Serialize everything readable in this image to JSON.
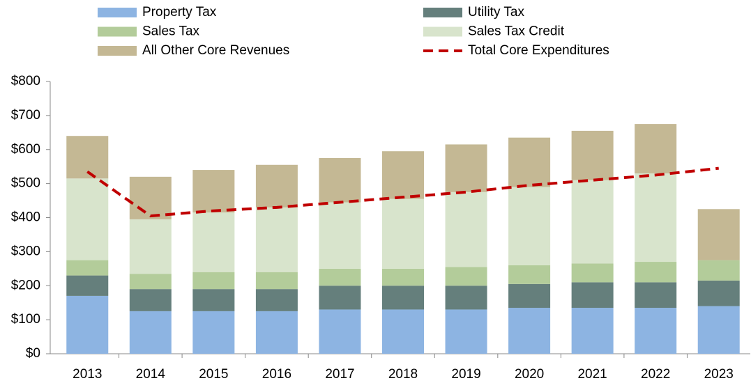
{
  "chart_data": {
    "type": "stacked_bar_line",
    "categories": [
      "2013",
      "2014",
      "2015",
      "2016",
      "2017",
      "2018",
      "2019",
      "2020",
      "2021",
      "2022",
      "2023"
    ],
    "series": [
      {
        "name": "Property Tax",
        "color": "#8db4e2",
        "values": [
          170,
          125,
          125,
          125,
          130,
          130,
          130,
          135,
          135,
          135,
          140
        ]
      },
      {
        "name": "Utility Tax",
        "color": "#657f7c",
        "values": [
          60,
          65,
          65,
          65,
          70,
          70,
          70,
          70,
          75,
          75,
          75
        ]
      },
      {
        "name": "Sales Tax",
        "color": "#b3cc9a",
        "values": [
          45,
          45,
          50,
          50,
          50,
          50,
          55,
          55,
          55,
          60,
          60
        ]
      },
      {
        "name": "Sales Tax Credit",
        "color": "#d8e4cc",
        "values": [
          240,
          160,
          175,
          190,
          195,
          205,
          220,
          230,
          245,
          260,
          0
        ]
      },
      {
        "name": "All Other Core Revenues",
        "color": "#c4b894",
        "values": [
          125,
          125,
          125,
          125,
          130,
          140,
          140,
          145,
          145,
          145,
          150
        ]
      },
      {
        "name": "Total Core Expenditures",
        "color": "#c00000",
        "kind": "line",
        "values": [
          535,
          405,
          420,
          430,
          445,
          460,
          475,
          495,
          510,
          525,
          545
        ]
      }
    ],
    "ylim": [
      0,
      800
    ],
    "yticks": [
      {
        "value": 0,
        "label": "$0"
      },
      {
        "value": 100,
        "label": "$100"
      },
      {
        "value": 200,
        "label": "$200"
      },
      {
        "value": 300,
        "label": "$300"
      },
      {
        "value": 400,
        "label": "$400"
      },
      {
        "value": 500,
        "label": "$500"
      },
      {
        "value": 600,
        "label": "$600"
      },
      {
        "value": 700,
        "label": "$700"
      },
      {
        "value": 800,
        "label": "$800"
      }
    ]
  }
}
